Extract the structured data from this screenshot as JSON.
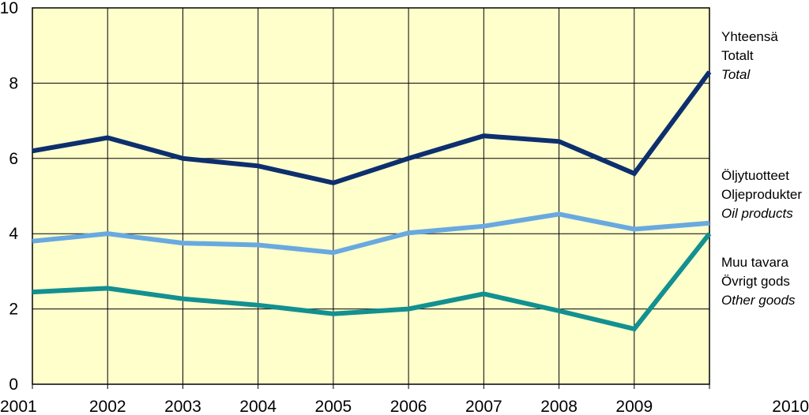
{
  "chart_data": {
    "type": "line",
    "title": "",
    "xlabel": "",
    "ylabel": "",
    "x": [
      "2001",
      "2002",
      "2003",
      "2004",
      "2005",
      "2006",
      "2007",
      "2008",
      "2009",
      "2010"
    ],
    "ylim": [
      0,
      10
    ],
    "yticks": [
      "0",
      "2",
      "4",
      "6",
      "8",
      "10"
    ],
    "grid": true,
    "legend_placement": "right",
    "background_color": "#FFFFCC",
    "series": [
      {
        "key": "total",
        "labels": [
          "Yhteensä",
          "Totalt",
          "Total"
        ],
        "color": "#0D2F6E",
        "values": [
          6.2,
          6.55,
          6.0,
          5.8,
          5.35,
          6.0,
          6.6,
          6.45,
          5.6,
          8.3
        ]
      },
      {
        "key": "oil",
        "labels": [
          "Öljytuotteet",
          "Oljeprodukter",
          "Oil products"
        ],
        "color": "#69A9E0",
        "values": [
          3.8,
          4.0,
          3.75,
          3.7,
          3.5,
          4.02,
          4.2,
          4.52,
          4.12,
          4.28
        ]
      },
      {
        "key": "other",
        "labels": [
          "Muu tavara",
          "Övrigt gods",
          "Other goods"
        ],
        "color": "#139090",
        "values": [
          2.45,
          2.55,
          2.27,
          2.1,
          1.87,
          2.0,
          2.4,
          1.95,
          1.47,
          4.0
        ]
      }
    ]
  }
}
